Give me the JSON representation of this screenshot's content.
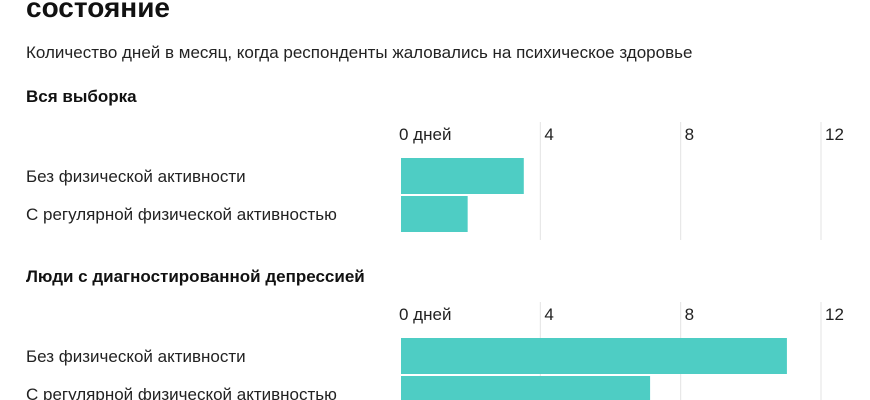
{
  "header": {
    "title": "состояние",
    "subtitle": "Количество дней в месяц, когда респонденты жаловались на психическое здоровье"
  },
  "colors": {
    "bar": "#4ecdc4",
    "gridline": "#e3e3e3",
    "text": "#222222"
  },
  "chart_data": [
    {
      "type": "bar",
      "orientation": "horizontal",
      "title": "Вся выборка",
      "categories": [
        "Без физической активности",
        "С регулярной физической активностью"
      ],
      "values": [
        3.5,
        1.9
      ],
      "xlim": [
        0,
        12
      ],
      "xticks": [
        0,
        4,
        8,
        12
      ],
      "xtick_labels": [
        "0 дней",
        "4",
        "8",
        "12"
      ],
      "grid": true
    },
    {
      "type": "bar",
      "orientation": "horizontal",
      "title": "Люди с диагностированной депрессией",
      "categories": [
        "Без физической активности",
        "С регулярной физической активностью"
      ],
      "values": [
        11.0,
        7.1
      ],
      "xlim": [
        0,
        12
      ],
      "xticks": [
        0,
        4,
        8,
        12
      ],
      "xtick_labels": [
        "0 дней",
        "4",
        "8",
        "12"
      ],
      "grid": true
    }
  ]
}
